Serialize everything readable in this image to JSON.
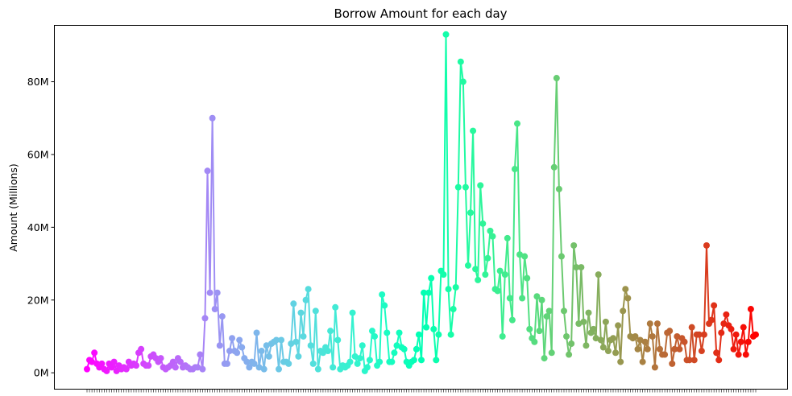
{
  "chart_data": {
    "type": "line",
    "title": "Borrow Amount for each day",
    "xlabel": "",
    "ylabel": "Amount (Millions)",
    "ylim": [
      -4.5,
      95.5
    ],
    "yticks": [
      0,
      20,
      40,
      60,
      80
    ],
    "ytick_labels": [
      "0M",
      "20M",
      "40M",
      "60M",
      "80M"
    ],
    "x_tick_labels_visible": false,
    "grid": false,
    "legend": "none",
    "color_map": "rainbow",
    "colors": {
      "start": "#8000ff",
      "end": "#ff0000"
    },
    "unit": "millions",
    "series": [
      {
        "marker": "circle",
        "values": [
          1.0,
          3.5,
          3.0,
          5.5,
          2.5,
          1.5,
          2.5,
          1.0,
          0.5,
          2.5,
          1.5,
          3.0,
          0.5,
          2.0,
          1.0,
          1.5,
          1.0,
          3.0,
          2.0,
          2.5,
          2.0,
          5.5,
          6.5,
          2.5,
          2.0,
          2.0,
          4.5,
          5.0,
          4.0,
          3.0,
          4.0,
          1.5,
          1.0,
          1.5,
          2.0,
          3.0,
          1.5,
          4.0,
          3.0,
          1.5,
          2.0,
          1.5,
          1.0,
          1.0,
          1.5,
          1.5,
          5.0,
          1.0,
          15.0,
          55.5,
          22.0,
          70.0,
          17.5,
          22.0,
          7.5,
          15.5,
          2.5,
          2.5,
          6.0,
          9.5,
          6.0,
          5.5,
          9.0,
          7.0,
          4.0,
          3.0,
          1.5,
          3.0,
          2.5,
          11.0,
          1.5,
          6.0,
          1.0,
          7.5,
          4.5,
          8.0,
          8.5,
          9.0,
          1.0,
          9.0,
          3.0,
          3.0,
          2.5,
          8.0,
          19.0,
          8.5,
          4.5,
          16.5,
          10.0,
          20.0,
          23.0,
          7.5,
          2.5,
          17.0,
          1.0,
          6.0,
          5.5,
          7.0,
          6.0,
          11.5,
          1.5,
          18.0,
          9.0,
          1.0,
          2.0,
          1.5,
          2.0,
          3.0,
          16.5,
          4.5,
          2.5,
          4.0,
          7.5,
          0.5,
          1.5,
          3.5,
          11.5,
          10.0,
          2.0,
          3.0,
          21.5,
          18.5,
          11.0,
          3.0,
          3.0,
          5.5,
          7.5,
          11.0,
          7.0,
          6.5,
          3.0,
          2.0,
          3.0,
          3.5,
          6.5,
          10.5,
          3.5,
          22.0,
          12.5,
          22.0,
          26.0,
          12.0,
          3.5,
          10.5,
          28.0,
          27.0,
          93.0,
          23.0,
          10.5,
          17.5,
          23.5,
          51.0,
          85.5,
          80.0,
          51.0,
          29.5,
          44.0,
          66.5,
          28.5,
          25.5,
          51.5,
          41.0,
          27.0,
          31.5,
          39.0,
          37.5,
          23.0,
          22.5,
          28.0,
          10.0,
          27.0,
          37.0,
          20.5,
          14.5,
          56.0,
          68.5,
          32.5,
          20.5,
          32.0,
          26.0,
          12.0,
          9.5,
          8.5,
          21.0,
          11.5,
          20.0,
          4.0,
          15.5,
          17.0,
          5.5,
          56.5,
          81.0,
          50.5,
          32.0,
          17.0,
          10.0,
          5.0,
          8.0,
          35.0,
          29.0,
          13.5,
          29.0,
          14.0,
          7.5,
          16.5,
          11.0,
          12.0,
          9.5,
          27.0,
          9.0,
          7.0,
          14.0,
          6.0,
          9.0,
          9.5,
          5.5,
          13.0,
          3.0,
          17.0,
          23.0,
          20.5,
          10.0,
          9.5,
          10.0,
          6.5,
          9.0,
          3.0,
          8.5,
          6.5,
          13.5,
          10.0,
          1.5,
          13.5,
          6.5,
          5.0,
          5.0,
          11.0,
          11.5,
          2.5,
          6.5,
          10.0,
          6.5,
          9.5,
          8.5,
          3.5,
          3.5,
          12.5,
          3.5,
          10.5,
          10.5,
          6.0,
          10.5,
          35.0,
          13.5,
          14.5,
          18.5,
          5.5,
          3.5,
          11.0,
          13.5,
          16.0,
          13.0,
          12.0,
          6.5,
          10.5,
          5.0,
          8.5,
          12.5,
          5.0,
          8.5,
          17.5,
          10.0,
          10.5
        ]
      }
    ]
  }
}
